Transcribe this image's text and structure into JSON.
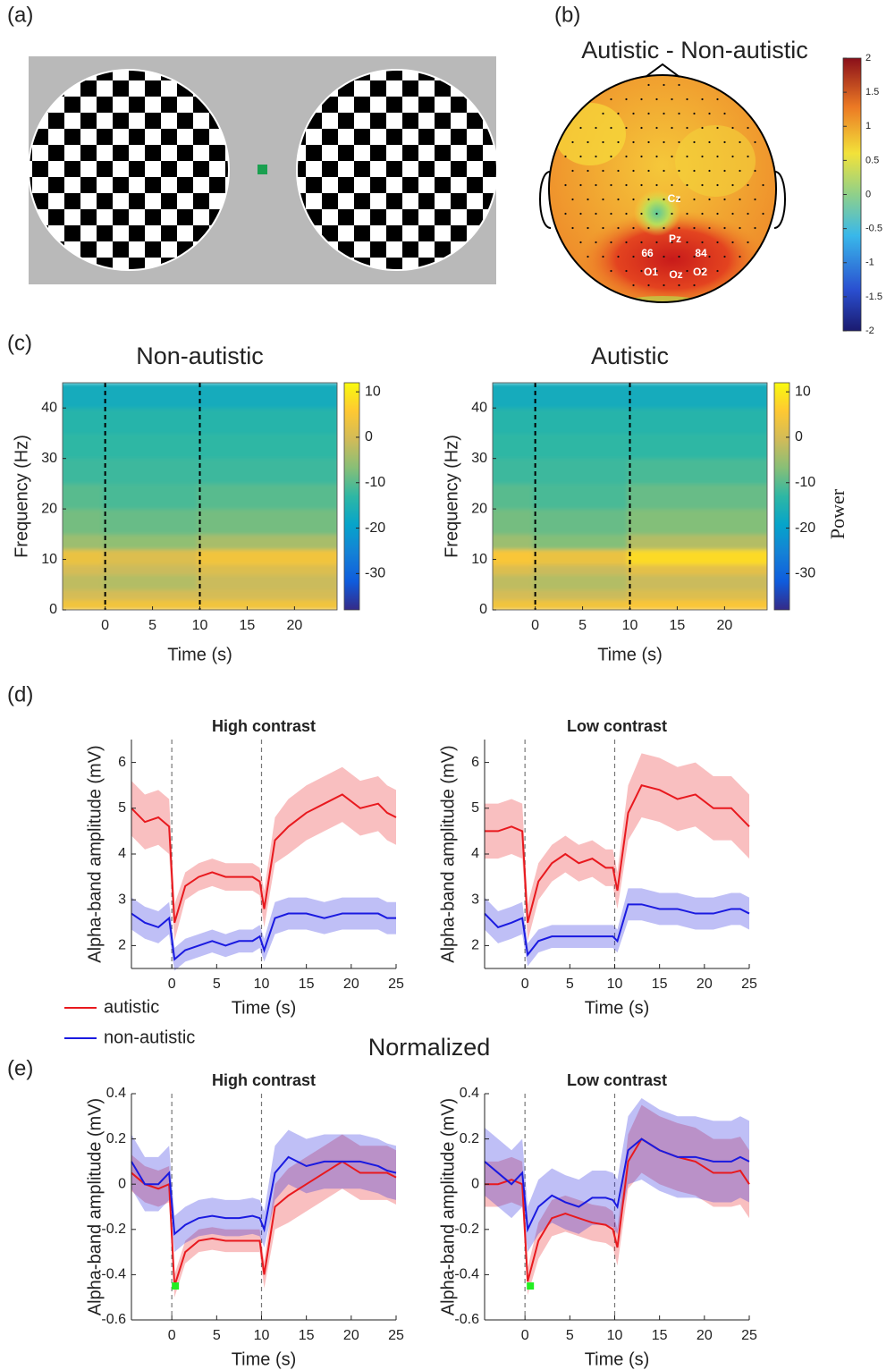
{
  "panel_labels": [
    "(a)",
    "(b)",
    "(c)",
    "(d)",
    "(e)"
  ],
  "topomap": {
    "title": "Autistic - Non-autistic",
    "electrodes": [
      "Cz",
      "Pz",
      "66",
      "84",
      "O1",
      "Oz",
      "O2"
    ],
    "colorbar_lim": [
      -2,
      2
    ],
    "colorbar_ticks": [
      2,
      1.5,
      1,
      0.5,
      0,
      -0.5,
      -1,
      -1.5,
      -2
    ]
  },
  "section_title": "Normalized",
  "chart_data": [
    {
      "type": "heatmap",
      "title": "Non-autistic",
      "xlabel": "Time (s)",
      "ylabel": "Frequency (Hz)",
      "x": [
        -4.5,
        0,
        10,
        24.5
      ],
      "y": [
        0,
        2,
        4,
        7,
        9,
        12,
        15,
        20,
        25,
        30,
        35,
        40,
        45
      ],
      "values": [
        [
          4,
          4,
          4
        ],
        [
          0,
          0,
          0
        ],
        [
          -2,
          -3,
          -1
        ],
        [
          0,
          -1,
          1
        ],
        [
          3,
          1,
          4
        ],
        [
          -5,
          -6,
          -4
        ],
        [
          -8,
          -9,
          -8
        ],
        [
          -10,
          -11,
          -10
        ],
        [
          -12,
          -12,
          -12
        ],
        [
          -13,
          -13,
          -13
        ],
        [
          -14,
          -14,
          -14
        ],
        [
          -17,
          -17,
          -17
        ]
      ],
      "xlim": [
        -4.5,
        24.5
      ],
      "ylim": [
        0,
        45
      ],
      "xticks": [
        0,
        5,
        10,
        15,
        20
      ],
      "yticks": [
        0,
        10,
        20,
        30,
        40
      ],
      "vlines": [
        0,
        10
      ],
      "clim": [
        -38,
        12
      ],
      "cticks": [
        10,
        0,
        -10,
        -20,
        -30
      ]
    },
    {
      "type": "heatmap",
      "title": "Autistic",
      "xlabel": "Time (s)",
      "ylabel": "Frequency (Hz)",
      "clabel": "Power",
      "x": [
        -4.5,
        0,
        10,
        24.5
      ],
      "y": [
        0,
        2,
        4,
        7,
        9,
        12,
        15,
        20,
        25,
        30,
        35,
        40,
        45
      ],
      "values": [
        [
          4,
          4,
          5
        ],
        [
          0,
          -1,
          1
        ],
        [
          -2,
          -3,
          -1
        ],
        [
          1,
          -1,
          2
        ],
        [
          5,
          3,
          8
        ],
        [
          -5,
          -7,
          -3
        ],
        [
          -8,
          -9,
          -7
        ],
        [
          -10,
          -11,
          -9
        ],
        [
          -12,
          -12,
          -11
        ],
        [
          -13,
          -13,
          -13
        ],
        [
          -14,
          -14,
          -14
        ],
        [
          -17,
          -17,
          -17
        ]
      ],
      "xlim": [
        -4.5,
        24.5
      ],
      "ylim": [
        0,
        45
      ],
      "xticks": [
        0,
        5,
        10,
        15,
        20
      ],
      "yticks": [
        0,
        10,
        20,
        30,
        40
      ],
      "vlines": [
        0,
        10
      ],
      "clim": [
        -38,
        12
      ],
      "cticks": [
        10,
        0,
        -10,
        -20,
        -30
      ]
    },
    {
      "type": "line",
      "title": "High contrast",
      "xlabel": "Time (s)",
      "ylabel": "Alpha-band amplitude (mV)",
      "x": [
        -4.5,
        -3,
        -1.5,
        -0.3,
        0.3,
        1.5,
        3,
        4.5,
        6,
        7.5,
        9,
        9.8,
        10.3,
        11.5,
        13,
        15,
        17,
        19,
        21,
        23,
        24,
        25
      ],
      "series": [
        {
          "name": "autistic",
          "color": "#e8191e",
          "values": [
            5.0,
            4.7,
            4.8,
            4.6,
            2.5,
            3.3,
            3.5,
            3.6,
            3.5,
            3.5,
            3.5,
            3.4,
            2.8,
            4.3,
            4.6,
            4.9,
            5.1,
            5.3,
            5.0,
            5.1,
            4.9,
            4.8
          ],
          "errors": [
            0.6,
            0.6,
            0.6,
            0.6,
            0.4,
            0.3,
            0.3,
            0.3,
            0.3,
            0.3,
            0.3,
            0.3,
            0.4,
            0.5,
            0.6,
            0.6,
            0.6,
            0.6,
            0.6,
            0.6,
            0.6,
            0.6
          ]
        },
        {
          "name": "non-autistic",
          "color": "#1a1ae0",
          "values": [
            2.7,
            2.5,
            2.4,
            2.6,
            1.7,
            1.9,
            2.0,
            2.1,
            2.0,
            2.1,
            2.1,
            2.2,
            1.9,
            2.6,
            2.7,
            2.7,
            2.6,
            2.7,
            2.7,
            2.7,
            2.6,
            2.6
          ],
          "errors": [
            0.35,
            0.35,
            0.35,
            0.35,
            0.25,
            0.25,
            0.25,
            0.25,
            0.25,
            0.25,
            0.25,
            0.25,
            0.25,
            0.35,
            0.35,
            0.35,
            0.35,
            0.35,
            0.35,
            0.35,
            0.35,
            0.35
          ]
        }
      ],
      "xlim": [
        -4.5,
        25
      ],
      "ylim": [
        1.5,
        6.5
      ],
      "xticks": [
        0,
        5,
        10,
        15,
        20,
        25
      ],
      "yticks": [
        2,
        3,
        4,
        5,
        6
      ],
      "vlines": [
        0,
        10
      ]
    },
    {
      "type": "line",
      "title": "Low contrast",
      "xlabel": "Time (s)",
      "ylabel": "Alpha-band amplitude (mV)",
      "x": [
        -4.5,
        -3,
        -1.5,
        -0.3,
        0.3,
        1.5,
        3,
        4.5,
        6,
        7.5,
        9,
        9.8,
        10.3,
        11.5,
        13,
        15,
        17,
        19,
        21,
        23,
        24,
        25
      ],
      "series": [
        {
          "name": "autistic",
          "color": "#e8191e",
          "values": [
            4.5,
            4.5,
            4.6,
            4.5,
            2.5,
            3.4,
            3.8,
            4.0,
            3.8,
            3.9,
            3.7,
            3.7,
            3.2,
            4.9,
            5.5,
            5.4,
            5.2,
            5.3,
            5.0,
            5.0,
            4.8,
            4.6
          ],
          "errors": [
            0.6,
            0.6,
            0.6,
            0.6,
            0.4,
            0.4,
            0.4,
            0.4,
            0.4,
            0.4,
            0.4,
            0.4,
            0.4,
            0.6,
            0.7,
            0.7,
            0.7,
            0.7,
            0.7,
            0.7,
            0.7,
            0.7
          ]
        },
        {
          "name": "non-autistic",
          "color": "#1a1ae0",
          "values": [
            2.7,
            2.4,
            2.5,
            2.6,
            1.8,
            2.1,
            2.2,
            2.2,
            2.2,
            2.2,
            2.2,
            2.2,
            2.1,
            2.9,
            2.9,
            2.8,
            2.8,
            2.7,
            2.7,
            2.8,
            2.8,
            2.7
          ],
          "errors": [
            0.35,
            0.35,
            0.35,
            0.35,
            0.25,
            0.25,
            0.25,
            0.25,
            0.25,
            0.25,
            0.25,
            0.25,
            0.25,
            0.35,
            0.35,
            0.35,
            0.35,
            0.35,
            0.35,
            0.35,
            0.35,
            0.35
          ]
        }
      ],
      "xlim": [
        -4.5,
        25
      ],
      "ylim": [
        1.5,
        6.5
      ],
      "xticks": [
        0,
        5,
        10,
        15,
        20,
        25
      ],
      "yticks": [
        2,
        3,
        4,
        5,
        6
      ],
      "vlines": [
        0,
        10
      ]
    },
    {
      "type": "line",
      "title": "High contrast",
      "xlabel": "Time (s)",
      "ylabel": "Alpha-band amplitude (mV)",
      "x": [
        -4.5,
        -3,
        -1.5,
        -0.3,
        0.3,
        1.5,
        3,
        4.5,
        6,
        7.5,
        9,
        9.8,
        10.3,
        11.5,
        13,
        15,
        17,
        19,
        21,
        23,
        24,
        25
      ],
      "series": [
        {
          "name": "autistic",
          "color": "#e8191e",
          "values": [
            0.05,
            0,
            -0.02,
            0,
            -0.45,
            -0.3,
            -0.25,
            -0.24,
            -0.25,
            -0.25,
            -0.25,
            -0.25,
            -0.4,
            -0.1,
            -0.05,
            0,
            0.05,
            0.1,
            0.05,
            0.05,
            0.05,
            0.03
          ],
          "errors": [
            0.08,
            0.08,
            0.08,
            0.08,
            0.05,
            0.05,
            0.05,
            0.05,
            0.05,
            0.05,
            0.05,
            0.05,
            0.06,
            0.1,
            0.12,
            0.12,
            0.12,
            0.12,
            0.12,
            0.12,
            0.12,
            0.12
          ]
        },
        {
          "name": "non-autistic",
          "color": "#1a1ae0",
          "values": [
            0.1,
            0,
            0.0,
            0.05,
            -0.22,
            -0.18,
            -0.15,
            -0.14,
            -0.15,
            -0.15,
            -0.14,
            -0.15,
            -0.2,
            0.05,
            0.12,
            0.08,
            0.1,
            0.1,
            0.1,
            0.08,
            0.06,
            0.05
          ],
          "errors": [
            0.12,
            0.12,
            0.12,
            0.12,
            0.08,
            0.08,
            0.08,
            0.08,
            0.08,
            0.08,
            0.08,
            0.08,
            0.08,
            0.12,
            0.12,
            0.12,
            0.12,
            0.12,
            0.12,
            0.12,
            0.12,
            0.12
          ]
        }
      ],
      "xlim": [
        -4.5,
        25
      ],
      "ylim": [
        -0.6,
        0.4
      ],
      "xticks": [
        0,
        5,
        10,
        15,
        20,
        25
      ],
      "yticks": [
        -0.6,
        -0.4,
        -0.2,
        0,
        0.2,
        0.4
      ],
      "vlines": [
        0,
        10
      ],
      "marker": {
        "x": 0.4,
        "y": -0.45,
        "color": "#22ee22"
      }
    },
    {
      "type": "line",
      "title": "Low contrast",
      "xlabel": "Time (s)",
      "ylabel": "Alpha-band amplitude (mV)",
      "x": [
        -4.5,
        -3,
        -1.5,
        -0.3,
        0.3,
        1.5,
        3,
        4.5,
        6,
        7.5,
        9,
        9.8,
        10.3,
        11.5,
        13,
        15,
        17,
        19,
        21,
        23,
        24,
        25
      ],
      "series": [
        {
          "name": "autistic",
          "color": "#e8191e",
          "values": [
            0,
            0,
            0.02,
            0,
            -0.43,
            -0.25,
            -0.15,
            -0.13,
            -0.15,
            -0.17,
            -0.18,
            -0.2,
            -0.28,
            0.1,
            0.2,
            0.15,
            0.12,
            0.1,
            0.05,
            0.05,
            0.06,
            0
          ],
          "errors": [
            0.1,
            0.1,
            0.1,
            0.1,
            0.06,
            0.08,
            0.08,
            0.08,
            0.08,
            0.08,
            0.08,
            0.08,
            0.08,
            0.12,
            0.15,
            0.15,
            0.15,
            0.15,
            0.15,
            0.15,
            0.15,
            0.15
          ]
        },
        {
          "name": "non-autistic",
          "color": "#1a1ae0",
          "values": [
            0.1,
            0.05,
            0,
            0.05,
            -0.2,
            -0.1,
            -0.05,
            -0.08,
            -0.1,
            -0.06,
            -0.06,
            -0.07,
            -0.1,
            0.15,
            0.2,
            0.15,
            0.12,
            0.12,
            0.1,
            0.1,
            0.12,
            0.1
          ],
          "errors": [
            0.15,
            0.15,
            0.15,
            0.15,
            0.1,
            0.12,
            0.12,
            0.12,
            0.12,
            0.12,
            0.12,
            0.12,
            0.12,
            0.15,
            0.18,
            0.18,
            0.18,
            0.18,
            0.18,
            0.18,
            0.18,
            0.18
          ]
        }
      ],
      "xlim": [
        -4.5,
        25
      ],
      "ylim": [
        -0.6,
        0.4
      ],
      "xticks": [
        0,
        5,
        10,
        15,
        20,
        25
      ],
      "yticks": [
        -0.6,
        -0.4,
        -0.2,
        0,
        0.2,
        0.4
      ],
      "vlines": [
        0,
        10
      ],
      "marker": {
        "x": 0.6,
        "y": -0.45,
        "color": "#22ee22"
      }
    }
  ]
}
